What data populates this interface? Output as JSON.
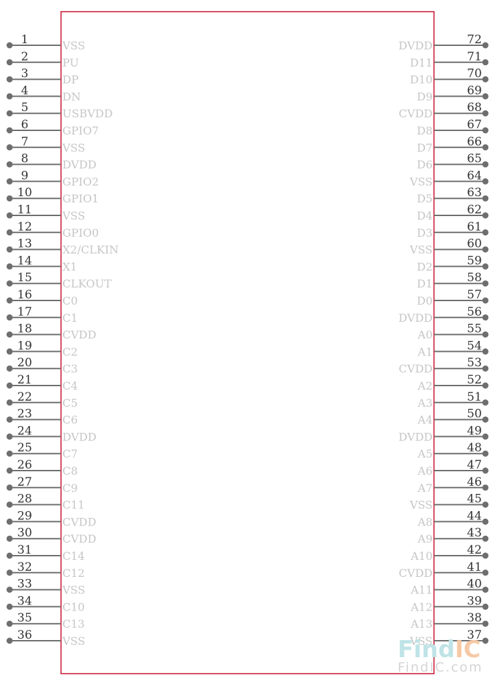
{
  "component": {
    "body_color": "#c8102e",
    "pin_color": "#6e6e6e",
    "label_color": "#c6c6c6",
    "left_pins": [
      {
        "num": "1",
        "name": "VSS"
      },
      {
        "num": "2",
        "name": "PU"
      },
      {
        "num": "3",
        "name": "DP"
      },
      {
        "num": "4",
        "name": "DN"
      },
      {
        "num": "5",
        "name": "USBVDD"
      },
      {
        "num": "6",
        "name": "GPIO7"
      },
      {
        "num": "7",
        "name": "VSS"
      },
      {
        "num": "8",
        "name": "DVDD"
      },
      {
        "num": "9",
        "name": "GPIO2"
      },
      {
        "num": "10",
        "name": "GPIO1"
      },
      {
        "num": "11",
        "name": "VSS"
      },
      {
        "num": "12",
        "name": "GPIO0"
      },
      {
        "num": "13",
        "name": "X2/CLKIN"
      },
      {
        "num": "14",
        "name": "X1"
      },
      {
        "num": "15",
        "name": "CLKOUT"
      },
      {
        "num": "16",
        "name": "C0"
      },
      {
        "num": "17",
        "name": "C1"
      },
      {
        "num": "18",
        "name": "CVDD"
      },
      {
        "num": "19",
        "name": "C2"
      },
      {
        "num": "20",
        "name": "C3"
      },
      {
        "num": "21",
        "name": "C4"
      },
      {
        "num": "22",
        "name": "C5"
      },
      {
        "num": "23",
        "name": "C6"
      },
      {
        "num": "24",
        "name": "DVDD"
      },
      {
        "num": "25",
        "name": "C7"
      },
      {
        "num": "26",
        "name": "C8"
      },
      {
        "num": "27",
        "name": "C9"
      },
      {
        "num": "28",
        "name": "C11"
      },
      {
        "num": "29",
        "name": "CVDD"
      },
      {
        "num": "30",
        "name": "CVDD"
      },
      {
        "num": "31",
        "name": "C14"
      },
      {
        "num": "32",
        "name": "C12"
      },
      {
        "num": "33",
        "name": "VSS"
      },
      {
        "num": "34",
        "name": "C10"
      },
      {
        "num": "35",
        "name": "C13"
      },
      {
        "num": "36",
        "name": "VSS"
      }
    ],
    "right_pins": [
      {
        "num": "72",
        "name": "DVDD"
      },
      {
        "num": "71",
        "name": "D11"
      },
      {
        "num": "70",
        "name": "D10"
      },
      {
        "num": "69",
        "name": "D9"
      },
      {
        "num": "68",
        "name": "CVDD"
      },
      {
        "num": "67",
        "name": "D8"
      },
      {
        "num": "66",
        "name": "D7"
      },
      {
        "num": "65",
        "name": "D6"
      },
      {
        "num": "64",
        "name": "VSS"
      },
      {
        "num": "63",
        "name": "D5"
      },
      {
        "num": "62",
        "name": "D4"
      },
      {
        "num": "61",
        "name": "D3"
      },
      {
        "num": "60",
        "name": "VSS"
      },
      {
        "num": "59",
        "name": "D2"
      },
      {
        "num": "58",
        "name": "D1"
      },
      {
        "num": "57",
        "name": "D0"
      },
      {
        "num": "56",
        "name": "DVDD"
      },
      {
        "num": "55",
        "name": "A0"
      },
      {
        "num": "54",
        "name": "A1"
      },
      {
        "num": "53",
        "name": "CVDD"
      },
      {
        "num": "52",
        "name": "A2"
      },
      {
        "num": "51",
        "name": "A3"
      },
      {
        "num": "50",
        "name": "A4"
      },
      {
        "num": "49",
        "name": "DVDD"
      },
      {
        "num": "48",
        "name": "A5"
      },
      {
        "num": "47",
        "name": "A6"
      },
      {
        "num": "46",
        "name": "A7"
      },
      {
        "num": "45",
        "name": "VSS"
      },
      {
        "num": "44",
        "name": "A8"
      },
      {
        "num": "43",
        "name": "A9"
      },
      {
        "num": "42",
        "name": "A10"
      },
      {
        "num": "41",
        "name": "CVDD"
      },
      {
        "num": "40",
        "name": "A11"
      },
      {
        "num": "39",
        "name": "A12"
      },
      {
        "num": "38",
        "name": "A13"
      },
      {
        "num": "37",
        "name": "VSS"
      }
    ]
  },
  "watermark": {
    "logo_part1": "Find",
    "logo_part2": "IC",
    "logo_color1": "#bfe3e6",
    "logo_color2": "#f6c9a6",
    "site": "FindIC.com",
    "site_color": "#d5d5d5"
  }
}
